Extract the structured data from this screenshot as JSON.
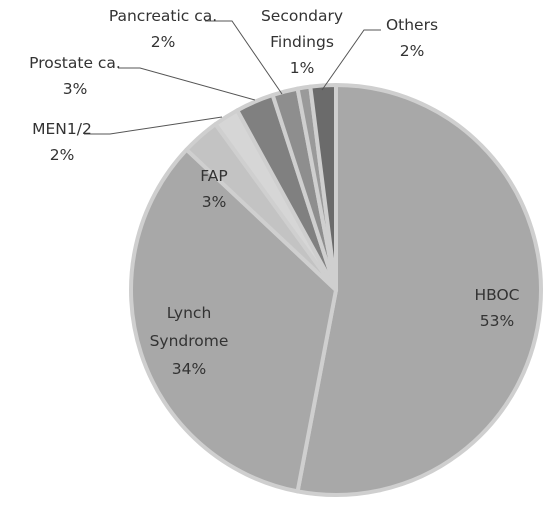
{
  "chart_data": {
    "type": "pie",
    "title": "",
    "slices": [
      {
        "label_lines": [
          "HBOC"
        ],
        "value_text": "53%",
        "value": 53,
        "color": "#a8a8a8"
      },
      {
        "label_lines": [
          "Lynch",
          "Syndrome"
        ],
        "value_text": "34%",
        "value": 34,
        "color": "#a8a8a8"
      },
      {
        "label_lines": [
          "FAP"
        ],
        "value_text": "3%",
        "value": 3,
        "color": "#c3c3c3"
      },
      {
        "label_lines": [
          "MEN1/2"
        ],
        "value_text": "2%",
        "value": 2,
        "color": "#d6d6d6"
      },
      {
        "label_lines": [
          "Prostate ca."
        ],
        "value_text": "3%",
        "value": 3,
        "color": "#808080"
      },
      {
        "label_lines": [
          "Pancreatic ca."
        ],
        "value_text": "2%",
        "value": 2,
        "color": "#8e8e8e"
      },
      {
        "label_lines": [
          "Secondary",
          "Findings"
        ],
        "value_text": "1%",
        "value": 1,
        "color": "#9a9a9a"
      },
      {
        "label_lines": [
          "Others"
        ],
        "value_text": "2%",
        "value": 2,
        "color": "#6b6b6b"
      }
    ],
    "start_angle_deg": 0,
    "direction": "clockwise"
  }
}
